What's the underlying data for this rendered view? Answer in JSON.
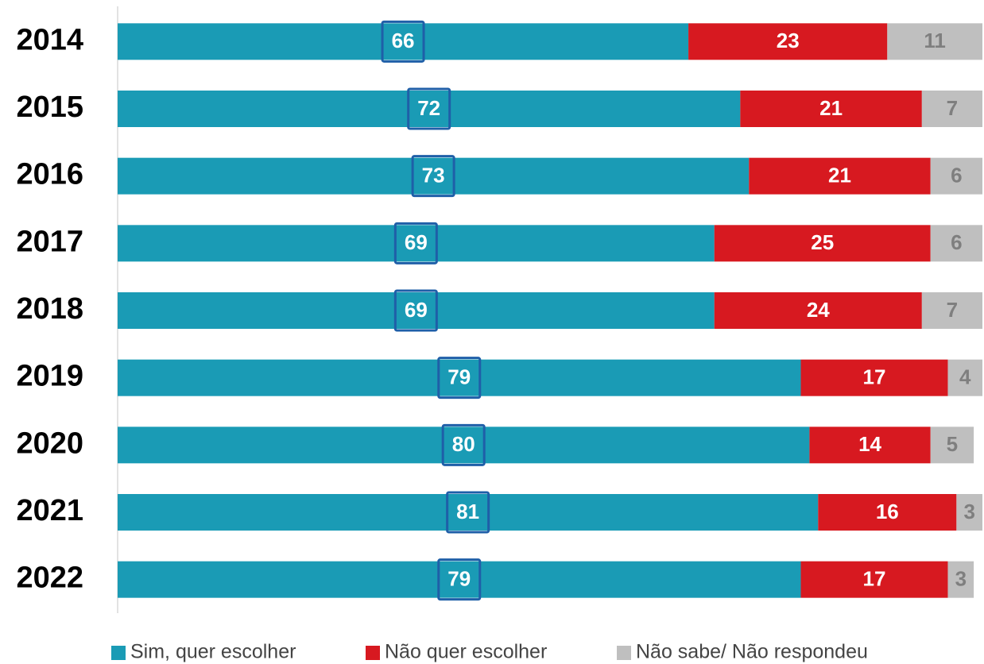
{
  "chart_data": {
    "type": "bar",
    "orientation": "horizontal",
    "stacked": true,
    "categories": [
      "2014",
      "2015",
      "2016",
      "2017",
      "2018",
      "2019",
      "2020",
      "2021",
      "2022"
    ],
    "series": [
      {
        "name": "Sim, quer escolher",
        "color": "#1a9bb5",
        "values": [
          66,
          72,
          73,
          69,
          69,
          79,
          80,
          81,
          79
        ]
      },
      {
        "name": "Não quer escolher",
        "color": "#d71920",
        "values": [
          23,
          21,
          21,
          25,
          24,
          17,
          14,
          16,
          17
        ]
      },
      {
        "name": "Não sabe/ Não respondeu",
        "color": "#bfbfbf",
        "values": [
          11,
          7,
          6,
          6,
          7,
          4,
          5,
          3,
          3
        ]
      }
    ],
    "xlim": [
      0,
      100
    ],
    "legend": "bottom"
  }
}
